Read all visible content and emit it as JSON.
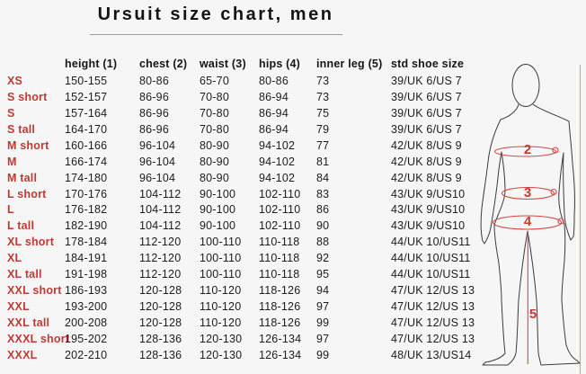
{
  "title": "Ursuit size chart, men",
  "table": {
    "columns": [
      "height (1)",
      "chest (2)",
      "waist (3)",
      "hips (4)",
      "inner leg (5)",
      "std shoe size"
    ],
    "rows": [
      {
        "size": "XS",
        "height": "150-155",
        "chest": "80-86",
        "waist": "65-70",
        "hips": "80-86",
        "inner_leg": "73",
        "shoe": "39/UK 6/US 7"
      },
      {
        "size": "S short",
        "height": "152-157",
        "chest": "86-96",
        "waist": "70-80",
        "hips": "86-94",
        "inner_leg": "73",
        "shoe": "39/UK 6/US 7"
      },
      {
        "size": "S",
        "height": "157-164",
        "chest": "86-96",
        "waist": "70-80",
        "hips": "86-94",
        "inner_leg": "75",
        "shoe": "39/UK 6/US 7"
      },
      {
        "size": "S tall",
        "height": "164-170",
        "chest": "86-96",
        "waist": "70-80",
        "hips": "86-94",
        "inner_leg": "79",
        "shoe": "39/UK 6/US 7"
      },
      {
        "size": "M short",
        "height": "160-166",
        "chest": "96-104",
        "waist": "80-90",
        "hips": "94-102",
        "inner_leg": "77",
        "shoe": "42/UK 8/US 9"
      },
      {
        "size": "M",
        "height": "166-174",
        "chest": "96-104",
        "waist": "80-90",
        "hips": "94-102",
        "inner_leg": "81",
        "shoe": "42/UK 8/US 9"
      },
      {
        "size": "M tall",
        "height": "174-180",
        "chest": "96-104",
        "waist": "80-90",
        "hips": "94-102",
        "inner_leg": "84",
        "shoe": "42/UK 8/US 9"
      },
      {
        "size": "L short",
        "height": "170-176",
        "chest": "104-112",
        "waist": "90-100",
        "hips": "102-110",
        "inner_leg": "83",
        "shoe": "43/UK 9/US10"
      },
      {
        "size": "L",
        "height": "176-182",
        "chest": "104-112",
        "waist": "90-100",
        "hips": "102-110",
        "inner_leg": "86",
        "shoe": "43/UK 9/US10"
      },
      {
        "size": "L tall",
        "height": "182-190",
        "chest": "104-112",
        "waist": "90-100",
        "hips": "102-110",
        "inner_leg": "90",
        "shoe": "43/UK 9/US10"
      },
      {
        "size": "XL short",
        "height": "178-184",
        "chest": "112-120",
        "waist": "100-110",
        "hips": "110-118",
        "inner_leg": "88",
        "shoe": "44/UK 10/US11"
      },
      {
        "size": "XL",
        "height": "184-191",
        "chest": "112-120",
        "waist": "100-110",
        "hips": "110-118",
        "inner_leg": "92",
        "shoe": "44/UK 10/US11"
      },
      {
        "size": "XL tall",
        "height": "191-198",
        "chest": "112-120",
        "waist": "100-110",
        "hips": "110-118",
        "inner_leg": "95",
        "shoe": "44/UK 10/US11"
      },
      {
        "size": "XXL short",
        "height": "186-193",
        "chest": "120-128",
        "waist": "110-120",
        "hips": "118-126",
        "inner_leg": "94",
        "shoe": "47/UK 12/US 13"
      },
      {
        "size": "XXL",
        "height": "193-200",
        "chest": "120-128",
        "waist": "110-120",
        "hips": "118-126",
        "inner_leg": "97",
        "shoe": "47/UK 12/US 13"
      },
      {
        "size": "XXL tall",
        "height": "200-208",
        "chest": "120-128",
        "waist": "110-120",
        "hips": "118-126",
        "inner_leg": "99",
        "shoe": "47/UK 12/US 13"
      },
      {
        "size": "XXXL short",
        "height": "195-202",
        "chest": "128-136",
        "waist": "120-130",
        "hips": "126-134",
        "inner_leg": "97",
        "shoe": "47/UK 12/US 13"
      },
      {
        "size": "XXXL",
        "height": "202-210",
        "chest": "128-136",
        "waist": "120-130",
        "hips": "126-134",
        "inner_leg": "99",
        "shoe": "48/UK 13/US14"
      }
    ]
  },
  "diagram": {
    "chest_label": "2",
    "waist_label": "3",
    "hips_label": "4",
    "inner_leg_label": "5"
  },
  "colors": {
    "background": "#f6f6f6",
    "size_label_red": "#bf3a33",
    "diagram_red": "#cf4a41",
    "text": "#1c1c1c"
  }
}
